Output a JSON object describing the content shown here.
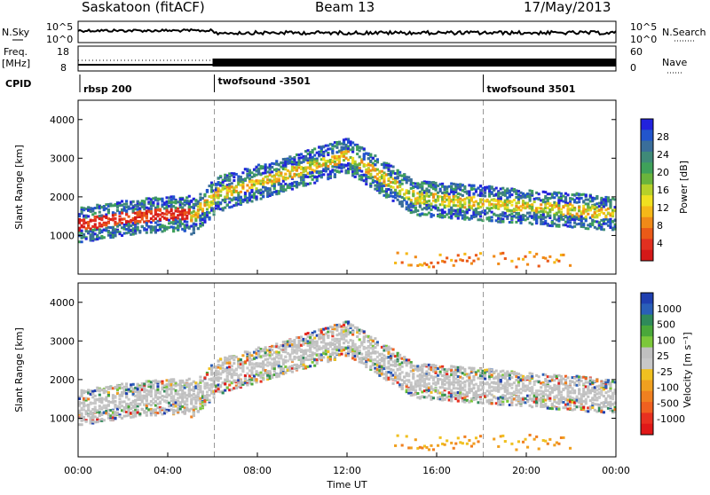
{
  "header": {
    "title": "Saskatoon (fitACF)",
    "beam": "Beam 13",
    "date": "17/May/2013"
  },
  "status_panels": {
    "sky": {
      "left_label": "N.Sky",
      "right_label": "N.Search",
      "left_ticks": [
        "10^5",
        "10^0"
      ],
      "right_ticks": [
        "10^5",
        "10^0"
      ]
    },
    "freq": {
      "left_label_1": "Freq.",
      "left_label_2": "[MHz]",
      "right_label": "Nave",
      "left_ticks": [
        "18",
        "8"
      ],
      "right_ticks": [
        "60",
        "0"
      ]
    },
    "cpid": {
      "label": "CPID",
      "segments": [
        {
          "name": "rbsp 200",
          "start": "00:00"
        },
        {
          "name": "twofsound -3501",
          "start": "06:00"
        },
        {
          "name": "twofsound 3501",
          "start": "18:00"
        }
      ]
    }
  },
  "chart_data": [
    {
      "type": "heatmap",
      "name": "Power",
      "ylabel": "Slant Range [km]",
      "xlabel": "",
      "ylim": [
        0,
        4500
      ],
      "y_ticks": [
        1000,
        2000,
        3000,
        4000
      ],
      "x_ticks": [
        "00:00",
        "04:00",
        "08:00",
        "12:00",
        "16:00",
        "20:00",
        "00:00"
      ],
      "xlim_hours": [
        0,
        24
      ],
      "colorbar": {
        "label": "Power [dB]",
        "ticks": [
          "28",
          "24",
          "20",
          "16",
          "12",
          "8",
          "4"
        ],
        "colors": [
          "#2222dd",
          "#2255cc",
          "#3a6e9a",
          "#3f8a78",
          "#3fa15a",
          "#6ab43c",
          "#b6d02a",
          "#f0e020",
          "#f5b818",
          "#f08a18",
          "#ea5a18",
          "#e23020",
          "#d41818"
        ]
      }
    },
    {
      "type": "heatmap",
      "name": "Velocity",
      "ylabel": "Slant Range [km]",
      "xlabel": "Time UT",
      "ylim": [
        0,
        4500
      ],
      "y_ticks": [
        1000,
        2000,
        3000,
        4000
      ],
      "x_ticks": [
        "00:00",
        "04:00",
        "08:00",
        "12:00",
        "16:00",
        "20:00",
        "00:00"
      ],
      "xlim_hours": [
        0,
        24
      ],
      "colorbar": {
        "label": "Velocity [m s⁻¹]",
        "ticks": [
          "1000",
          "500",
          "100",
          "25",
          "-25",
          "-100",
          "-500",
          "-1000"
        ],
        "colors": [
          "#1f3fb0",
          "#2a5fb8",
          "#2f8a5a",
          "#4aa83a",
          "#7cc83a",
          "#c0c0c0",
          "#c8c8c8",
          "#f0c020",
          "#f0a020",
          "#f08020",
          "#f06020",
          "#e83020",
          "#e01818"
        ]
      }
    }
  ],
  "colors": {
    "frame": "#000000",
    "ground_scatter": "#c0c0c0",
    "dashed_marker": "#999999"
  }
}
